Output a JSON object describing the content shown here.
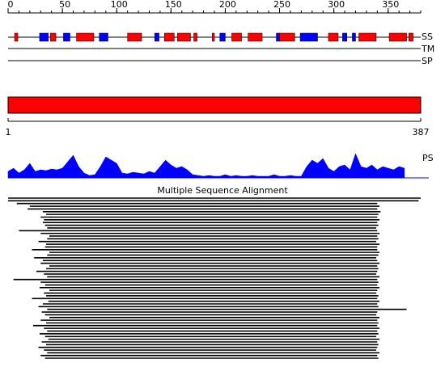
{
  "ruler": {
    "xlim": [
      0,
      380
    ],
    "ticks": [
      0,
      50,
      100,
      150,
      200,
      250,
      300,
      350
    ],
    "minor_ticks": [
      0,
      10,
      20,
      30,
      40,
      50,
      60,
      70,
      80,
      90,
      100,
      110,
      120,
      130,
      140,
      150,
      160,
      170,
      180,
      190,
      200,
      210,
      220,
      230,
      240,
      250,
      260,
      270,
      280,
      290,
      300,
      310,
      320,
      330,
      340,
      350,
      360,
      370,
      380
    ]
  },
  "ss": {
    "label": "SS",
    "colors": {
      "helix": "#ff0000",
      "strand": "#0000ff"
    },
    "segments": [
      {
        "type": "helix",
        "start": 6,
        "end": 9
      },
      {
        "type": "strand",
        "start": 29,
        "end": 37
      },
      {
        "type": "helix",
        "start": 39,
        "end": 44
      },
      {
        "type": "strand",
        "start": 51,
        "end": 57
      },
      {
        "type": "helix",
        "start": 63,
        "end": 79
      },
      {
        "type": "strand",
        "start": 84,
        "end": 92
      },
      {
        "type": "helix",
        "start": 110,
        "end": 123
      },
      {
        "type": "strand",
        "start": 135,
        "end": 139
      },
      {
        "type": "helix",
        "start": 144,
        "end": 153
      },
      {
        "type": "helix",
        "start": 156,
        "end": 168
      },
      {
        "type": "helix",
        "start": 171,
        "end": 174
      },
      {
        "type": "helix",
        "start": 188,
        "end": 190
      },
      {
        "type": "strand",
        "start": 195,
        "end": 200
      },
      {
        "type": "helix",
        "start": 206,
        "end": 215
      },
      {
        "type": "helix",
        "start": 221,
        "end": 234
      },
      {
        "type": "strand",
        "start": 247,
        "end": 250
      },
      {
        "type": "helix",
        "start": 250,
        "end": 264
      },
      {
        "type": "strand",
        "start": 269,
        "end": 285
      },
      {
        "type": "helix",
        "start": 295,
        "end": 304
      },
      {
        "type": "strand",
        "start": 308,
        "end": 312
      },
      {
        "type": "strand",
        "start": 317,
        "end": 320
      },
      {
        "type": "helix",
        "start": 323,
        "end": 339
      },
      {
        "type": "helix",
        "start": 351,
        "end": 367
      },
      {
        "type": "helix",
        "start": 369,
        "end": 373
      }
    ]
  },
  "tm": {
    "label": "TM"
  },
  "sp": {
    "label": "SP"
  },
  "domain_bar": {
    "start": 1,
    "end": 387,
    "color": "#ff0000"
  },
  "ps": {
    "label": "PS",
    "color": "#0000ff",
    "ylim": [
      0,
      32
    ],
    "x": [
      0,
      5,
      10,
      15,
      20,
      25,
      30,
      35,
      40,
      45,
      50,
      55,
      60,
      65,
      70,
      75,
      80,
      85,
      90,
      95,
      100,
      105,
      110,
      115,
      120,
      125,
      130,
      135,
      140,
      145,
      150,
      155,
      160,
      165,
      170,
      175,
      180,
      185,
      190,
      195,
      200,
      205,
      210,
      215,
      220,
      225,
      230,
      235,
      240,
      245,
      250,
      255,
      260,
      265,
      270,
      275,
      280,
      285,
      290,
      295,
      300,
      305,
      310,
      315,
      320,
      325,
      330,
      335,
      340,
      345,
      350,
      355,
      360,
      365
    ],
    "values": [
      8,
      12,
      6,
      10,
      18,
      8,
      10,
      9,
      11,
      10,
      12,
      20,
      28,
      14,
      6,
      3,
      4,
      14,
      26,
      22,
      18,
      6,
      5,
      7,
      6,
      5,
      8,
      6,
      14,
      22,
      16,
      12,
      14,
      10,
      4,
      3,
      2,
      3,
      2,
      2,
      4,
      2,
      3,
      2,
      2,
      3,
      2,
      2,
      2,
      4,
      2,
      2,
      3,
      2,
      2,
      14,
      22,
      18,
      24,
      12,
      8,
      14,
      16,
      10,
      30,
      14,
      12,
      16,
      10,
      14,
      12,
      10,
      14,
      12
    ]
  },
  "msa": {
    "title": "Multiple Sequence Alignment",
    "hits": [
      [
        0,
        380
      ],
      [
        0,
        378
      ],
      [
        8,
        340
      ],
      [
        20,
        342
      ],
      [
        18,
        340
      ],
      [
        32,
        343
      ],
      [
        35,
        341
      ],
      [
        30,
        340
      ],
      [
        33,
        342
      ],
      [
        32,
        340
      ],
      [
        34,
        341
      ],
      [
        36,
        339
      ],
      [
        10,
        340
      ],
      [
        30,
        342
      ],
      [
        38,
        340
      ],
      [
        36,
        341
      ],
      [
        28,
        339
      ],
      [
        35,
        342
      ],
      [
        34,
        340
      ],
      [
        22,
        340
      ],
      [
        38,
        342
      ],
      [
        36,
        341
      ],
      [
        24,
        339
      ],
      [
        32,
        340
      ],
      [
        30,
        342
      ],
      [
        38,
        340
      ],
      [
        35,
        341
      ],
      [
        26,
        340
      ],
      [
        33,
        339
      ],
      [
        36,
        342
      ],
      [
        5,
        340
      ],
      [
        30,
        341
      ],
      [
        34,
        340
      ],
      [
        29,
        342
      ],
      [
        38,
        340
      ],
      [
        33,
        339
      ],
      [
        35,
        341
      ],
      [
        22,
        340
      ],
      [
        37,
        342
      ],
      [
        32,
        340
      ],
      [
        28,
        341
      ],
      [
        36,
        367
      ],
      [
        31,
        340
      ],
      [
        34,
        339
      ],
      [
        38,
        342
      ],
      [
        30,
        340
      ],
      [
        35,
        341
      ],
      [
        23,
        340
      ],
      [
        33,
        342
      ],
      [
        36,
        340
      ],
      [
        29,
        341
      ],
      [
        34,
        339
      ],
      [
        37,
        342
      ],
      [
        31,
        340
      ],
      [
        35,
        341
      ],
      [
        28,
        340
      ],
      [
        33,
        339
      ],
      [
        36,
        342
      ],
      [
        30,
        340
      ],
      [
        34,
        341
      ]
    ]
  }
}
